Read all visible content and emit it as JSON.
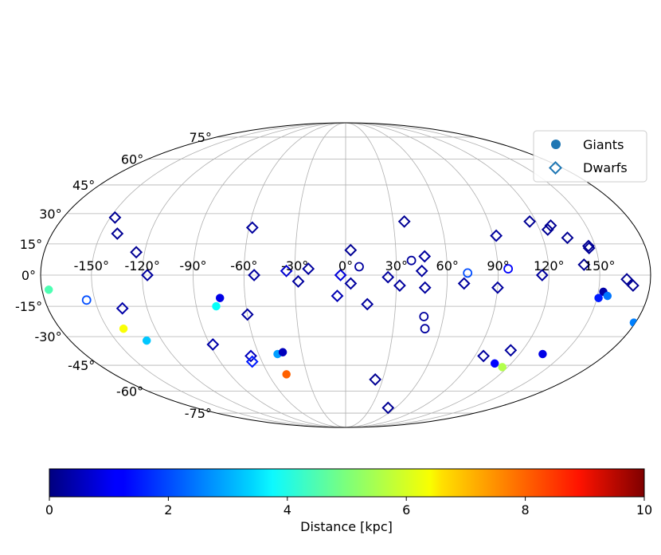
{
  "chart_data": {
    "type": "scatter",
    "projection": "mollweide",
    "grid": true,
    "legend_position": "top-right",
    "longitude_ticks": [
      "-150°",
      "-120°",
      "-90°",
      "-60°",
      "-30°",
      "0°",
      "30°",
      "60°",
      "90°",
      "120°",
      "150°"
    ],
    "latitude_ticks_left": [
      "75°",
      "60°",
      "45°",
      "30°",
      "15°",
      "0°",
      "-15°",
      "-30°",
      "-45°",
      "-60°",
      "-75°"
    ],
    "legend": [
      {
        "label": "Giants",
        "marker": "circle"
      },
      {
        "label": "Dwarfs",
        "marker": "diamond-open"
      }
    ],
    "colorbar": {
      "label": "Distance  [kpc]",
      "ticks": [
        "0",
        "2",
        "4",
        "6",
        "8",
        "10"
      ],
      "range": [
        0,
        10
      ],
      "colormap": "jet"
    },
    "series": [
      {
        "name": "Giants",
        "marker": "circle",
        "points": [
          {
            "lon": -75,
            "lat": -11,
            "dist": 1.0,
            "filled": true
          },
          {
            "lon": -78,
            "lat": -15,
            "dist": 3.8,
            "filled": true
          },
          {
            "lon": -140,
            "lat": -26,
            "dist": 6.2,
            "filled": true
          },
          {
            "lon": -176,
            "lat": -7,
            "dist": 4.5,
            "filled": true
          },
          {
            "lon": -130,
            "lat": -32,
            "dist": 3.2,
            "filled": true
          },
          {
            "lon": -47,
            "lat": -39,
            "dist": 2.8,
            "filled": true
          },
          {
            "lon": -43,
            "lat": -38,
            "dist": 0.6,
            "filled": true
          },
          {
            "lon": -46,
            "lat": -50,
            "dist": 7.8,
            "filled": true
          },
          {
            "lon": -155,
            "lat": -12,
            "dist": 2.0,
            "filled": false
          },
          {
            "lon": 8,
            "lat": 4,
            "dist": 0.3,
            "filled": false
          },
          {
            "lon": 39,
            "lat": 7,
            "dist": 0.3,
            "filled": false
          },
          {
            "lon": 48,
            "lat": -20,
            "dist": 0.3,
            "filled": false
          },
          {
            "lon": 50,
            "lat": -26,
            "dist": 0.3,
            "filled": false
          },
          {
            "lon": 72,
            "lat": 1,
            "dist": 2.0,
            "filled": false
          },
          {
            "lon": 96,
            "lat": 3,
            "dist": 1.2,
            "filled": false
          },
          {
            "lon": 153,
            "lat": -8,
            "dist": 0.4,
            "filled": true
          },
          {
            "lon": 156,
            "lat": -10,
            "dist": 2.4,
            "filled": true
          },
          {
            "lon": 151,
            "lat": -11,
            "dist": 1.5,
            "filled": true
          },
          {
            "lon": 136,
            "lat": -39,
            "dist": 1.0,
            "filled": true
          },
          {
            "lon": 108,
            "lat": -44,
            "dist": 1.3,
            "filled": true
          },
          {
            "lon": 116,
            "lat": -46,
            "dist": 5.5,
            "filled": true
          },
          {
            "lon": 179,
            "lat": -23,
            "dist": 2.5,
            "filled": true
          }
        ]
      },
      {
        "name": "Dwarfs",
        "marker": "diamond-open",
        "points": [
          {
            "lon": -140,
            "lat": 20,
            "dist": 0.2
          },
          {
            "lon": -147,
            "lat": 28,
            "dist": 0.2
          },
          {
            "lon": -125,
            "lat": 11,
            "dist": 0.2
          },
          {
            "lon": -117,
            "lat": 0,
            "dist": 0.3
          },
          {
            "lon": -135,
            "lat": -16,
            "dist": 0.4
          },
          {
            "lon": -88,
            "lat": -34,
            "dist": 0.4
          },
          {
            "lon": -60,
            "lat": -19,
            "dist": 0.3
          },
          {
            "lon": -66,
            "lat": -40,
            "dist": 0.6
          },
          {
            "lon": -58,
            "lat": 23,
            "dist": 0.3
          },
          {
            "lon": -54,
            "lat": 0,
            "dist": 0.3
          },
          {
            "lon": -35,
            "lat": 2,
            "dist": 0.8
          },
          {
            "lon": -28,
            "lat": -3,
            "dist": 0.3
          },
          {
            "lon": -22,
            "lat": 3,
            "dist": 0.3
          },
          {
            "lon": -3,
            "lat": 0,
            "dist": 0.9
          },
          {
            "lon": -5,
            "lat": -10,
            "dist": 0.5
          },
          {
            "lon": 3,
            "lat": -4,
            "dist": 0.3
          },
          {
            "lon": 3,
            "lat": 12,
            "dist": 0.2
          },
          {
            "lon": 13,
            "lat": -14,
            "dist": 0.3
          },
          {
            "lon": 25,
            "lat": -1,
            "dist": 0.3
          },
          {
            "lon": 32,
            "lat": -5,
            "dist": 0.3
          },
          {
            "lon": 37,
            "lat": 26,
            "dist": 0.2
          },
          {
            "lon": 47,
            "lat": 9,
            "dist": 0.3
          },
          {
            "lon": 45,
            "lat": 2,
            "dist": 0.3
          },
          {
            "lon": 47,
            "lat": -6,
            "dist": 0.3
          },
          {
            "lon": 70,
            "lat": -4,
            "dist": 0.3
          },
          {
            "lon": 92,
            "lat": 19,
            "dist": 0.3
          },
          {
            "lon": 90,
            "lat": -6,
            "dist": 0.3
          },
          {
            "lon": 116,
            "lat": 26,
            "dist": 0.2
          },
          {
            "lon": 125,
            "lat": 22,
            "dist": 0.2
          },
          {
            "lon": 128,
            "lat": 24,
            "dist": 0.2
          },
          {
            "lon": 116,
            "lat": 0,
            "dist": 0.3
          },
          {
            "lon": 135,
            "lat": 18,
            "dist": 0.2
          },
          {
            "lon": 146,
            "lat": 14,
            "dist": 0.2
          },
          {
            "lon": 141,
            "lat": 5,
            "dist": 0.2
          },
          {
            "lon": 146,
            "lat": 13,
            "dist": 0.2
          },
          {
            "lon": 166,
            "lat": -2,
            "dist": 0.2
          },
          {
            "lon": 170,
            "lat": -5,
            "dist": 0.2
          },
          {
            "lon": 24,
            "lat": -53,
            "dist": 0.2
          },
          {
            "lon": 51,
            "lat": -71,
            "dist": 0.2
          },
          {
            "lon": 112,
            "lat": -37,
            "dist": 0.3
          },
          {
            "lon": 96,
            "lat": -40,
            "dist": 0.3
          },
          {
            "lon": -67,
            "lat": -43,
            "dist": 1.5
          }
        ]
      }
    ]
  }
}
